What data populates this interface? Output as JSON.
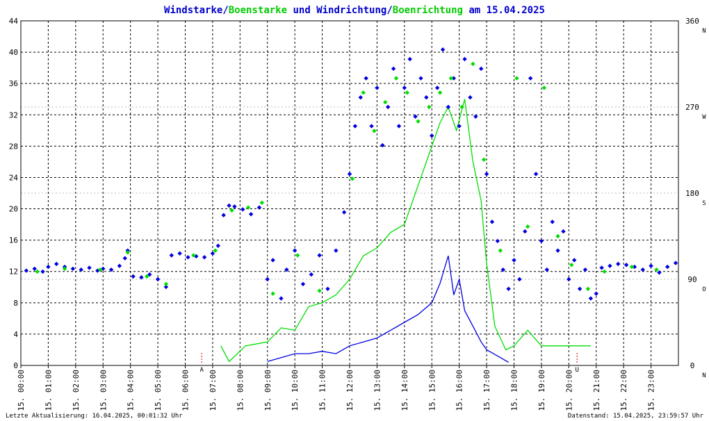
{
  "title": {
    "part1": "Windstarke",
    "sep1": "/",
    "part2": "Boenstarke",
    "part3": " und ",
    "part4": "Windrichtung",
    "sep2": "/",
    "part5": "Boenrichtung",
    "part6": " am 15.04.2025"
  },
  "footer": {
    "left": "Letzte Aktualisierung: 16.04.2025, 00:01:32 Uhr",
    "right": "Datenstand: 15.04.2025, 23:59:57 Uhr"
  },
  "markers": [
    {
      "label": "A",
      "hour": 6.6
    },
    {
      "label": "U",
      "hour": 20.3
    }
  ],
  "colors": {
    "wind": "#0000e0",
    "gust": "#00dd00",
    "title_blue": "#0000cc",
    "title_green": "#00cc00",
    "grid": "#000000",
    "marker": "#cc0000"
  },
  "chart_data": {
    "type": "line",
    "x_unit": "hour of day",
    "xlim": [
      0,
      24
    ],
    "ylim": [
      0,
      44
    ],
    "y_ticks": [
      0,
      4,
      8,
      12,
      16,
      20,
      24,
      28,
      32,
      36,
      40,
      44
    ],
    "y2lim": [
      0,
      360
    ],
    "y2_ticks": [
      {
        "value": 0,
        "label": "0",
        "dir": "N"
      },
      {
        "value": 90,
        "label": "90",
        "dir": "O"
      },
      {
        "value": 180,
        "label": "180",
        "dir": "S"
      },
      {
        "value": 270,
        "label": "270",
        "dir": "W"
      },
      {
        "value": 360,
        "label": "360",
        "dir": "N"
      }
    ],
    "x_ticks": [
      "15. 00:00",
      "15. 01:00",
      "15. 02:00",
      "15. 03:00",
      "15. 04:00",
      "15. 05:00",
      "15. 06:00",
      "15. 07:00",
      "15. 08:00",
      "15. 09:00",
      "15. 10:00",
      "15. 11:00",
      "15. 12:00",
      "15. 13:00",
      "15. 14:00",
      "15. 15:00",
      "15. 16:00",
      "15. 17:00",
      "15. 18:00",
      "15. 19:00",
      "15. 20:00",
      "15. 21:00",
      "15. 22:00",
      "15. 23:00"
    ],
    "series": [
      {
        "name": "Windstarke",
        "axis": "left",
        "style": "line",
        "points": [
          [
            9.0,
            0.5
          ],
          [
            9.5,
            1.0
          ],
          [
            10.0,
            1.5
          ],
          [
            10.5,
            1.5
          ],
          [
            11.0,
            1.8
          ],
          [
            11.5,
            1.5
          ],
          [
            12.0,
            2.5
          ],
          [
            12.5,
            3.0
          ],
          [
            13.0,
            3.5
          ],
          [
            13.5,
            4.5
          ],
          [
            14.0,
            5.5
          ],
          [
            14.5,
            6.5
          ],
          [
            15.0,
            8.0
          ],
          [
            15.3,
            10.5
          ],
          [
            15.6,
            14.0
          ],
          [
            15.8,
            9.0
          ],
          [
            16.0,
            11.0
          ],
          [
            16.2,
            7.0
          ],
          [
            16.5,
            5.0
          ],
          [
            16.8,
            3.0
          ],
          [
            17.0,
            2.0
          ],
          [
            17.5,
            1.0
          ],
          [
            17.8,
            0.4
          ]
        ]
      },
      {
        "name": "Boenstarke",
        "axis": "left",
        "style": "line",
        "points": [
          [
            7.3,
            2.5
          ],
          [
            7.6,
            0.5
          ],
          [
            8.2,
            2.5
          ],
          [
            9.0,
            3.0
          ],
          [
            9.5,
            4.8
          ],
          [
            10.0,
            4.5
          ],
          [
            10.5,
            7.5
          ],
          [
            11.0,
            8.0
          ],
          [
            11.5,
            9.0
          ],
          [
            12.0,
            11.0
          ],
          [
            12.5,
            14.0
          ],
          [
            13.0,
            15.0
          ],
          [
            13.5,
            17.0
          ],
          [
            14.0,
            18.0
          ],
          [
            14.3,
            21.0
          ],
          [
            14.6,
            24.0
          ],
          [
            15.0,
            28.0
          ],
          [
            15.3,
            31.0
          ],
          [
            15.6,
            33.0
          ],
          [
            15.9,
            30.0
          ],
          [
            16.2,
            34.0
          ],
          [
            16.5,
            26.0
          ],
          [
            16.8,
            21.0
          ],
          [
            17.0,
            13.0
          ],
          [
            17.3,
            5.0
          ],
          [
            17.7,
            2.0
          ],
          [
            18.0,
            2.5
          ],
          [
            18.5,
            4.5
          ],
          [
            19.0,
            2.5
          ],
          [
            19.5,
            2.5
          ],
          [
            20.3,
            2.5
          ],
          [
            20.8,
            2.5
          ]
        ]
      },
      {
        "name": "Windrichtung",
        "axis": "right",
        "style": "scatter",
        "points": [
          [
            0.2,
            99
          ],
          [
            0.5,
            101
          ],
          [
            0.8,
            98
          ],
          [
            1.0,
            103
          ],
          [
            1.3,
            106
          ],
          [
            1.6,
            103
          ],
          [
            1.9,
            101
          ],
          [
            2.2,
            100
          ],
          [
            2.5,
            102
          ],
          [
            2.8,
            99
          ],
          [
            3.0,
            101
          ],
          [
            3.3,
            100
          ],
          [
            3.6,
            104
          ],
          [
            3.8,
            112
          ],
          [
            3.9,
            120
          ],
          [
            4.1,
            93
          ],
          [
            4.4,
            92
          ],
          [
            4.7,
            95
          ],
          [
            5.0,
            90
          ],
          [
            5.3,
            82
          ],
          [
            5.5,
            115
          ],
          [
            5.8,
            117
          ],
          [
            6.1,
            113
          ],
          [
            6.4,
            114
          ],
          [
            6.7,
            113
          ],
          [
            7.0,
            117
          ],
          [
            7.2,
            125
          ],
          [
            7.4,
            157
          ],
          [
            7.6,
            167
          ],
          [
            7.8,
            166
          ],
          [
            8.1,
            163
          ],
          [
            8.4,
            158
          ],
          [
            8.7,
            165
          ],
          [
            9.0,
            90
          ],
          [
            9.2,
            110
          ],
          [
            9.5,
            70
          ],
          [
            9.7,
            100
          ],
          [
            10.0,
            120
          ],
          [
            10.3,
            85
          ],
          [
            10.6,
            95
          ],
          [
            10.9,
            115
          ],
          [
            11.2,
            80
          ],
          [
            11.5,
            120
          ],
          [
            11.8,
            160
          ],
          [
            12.0,
            200
          ],
          [
            12.2,
            250
          ],
          [
            12.4,
            280
          ],
          [
            12.6,
            300
          ],
          [
            12.8,
            250
          ],
          [
            13.0,
            290
          ],
          [
            13.2,
            230
          ],
          [
            13.4,
            270
          ],
          [
            13.6,
            310
          ],
          [
            13.8,
            250
          ],
          [
            14.0,
            290
          ],
          [
            14.2,
            320
          ],
          [
            14.4,
            260
          ],
          [
            14.6,
            300
          ],
          [
            14.8,
            280
          ],
          [
            15.0,
            240
          ],
          [
            15.2,
            290
          ],
          [
            15.4,
            330
          ],
          [
            15.6,
            270
          ],
          [
            15.8,
            300
          ],
          [
            16.0,
            250
          ],
          [
            16.2,
            320
          ],
          [
            16.4,
            280
          ],
          [
            16.6,
            260
          ],
          [
            16.8,
            310
          ],
          [
            17.0,
            200
          ],
          [
            17.2,
            150
          ],
          [
            17.4,
            130
          ],
          [
            17.6,
            100
          ],
          [
            17.8,
            80
          ],
          [
            18.0,
            110
          ],
          [
            18.2,
            90
          ],
          [
            18.4,
            140
          ],
          [
            18.6,
            300
          ],
          [
            18.8,
            200
          ],
          [
            19.0,
            130
          ],
          [
            19.2,
            100
          ],
          [
            19.4,
            150
          ],
          [
            19.6,
            120
          ],
          [
            19.8,
            140
          ],
          [
            20.0,
            90
          ],
          [
            20.2,
            110
          ],
          [
            20.4,
            80
          ],
          [
            20.6,
            100
          ],
          [
            20.8,
            70
          ],
          [
            21.0,
            75
          ],
          [
            21.2,
            102
          ],
          [
            21.5,
            104
          ],
          [
            21.8,
            106
          ],
          [
            22.1,
            105
          ],
          [
            22.4,
            103
          ],
          [
            22.7,
            100
          ],
          [
            23.0,
            104
          ],
          [
            23.3,
            97
          ],
          [
            23.6,
            103
          ],
          [
            23.9,
            107
          ]
        ]
      },
      {
        "name": "Boenrichtung",
        "axis": "right",
        "style": "scatter",
        "points": [
          [
            0.6,
            98
          ],
          [
            1.6,
            101
          ],
          [
            2.9,
            100
          ],
          [
            3.9,
            118
          ],
          [
            4.6,
            93
          ],
          [
            5.3,
            85
          ],
          [
            6.3,
            115
          ],
          [
            7.1,
            120
          ],
          [
            7.7,
            162
          ],
          [
            8.3,
            165
          ],
          [
            8.8,
            170
          ],
          [
            9.2,
            75
          ],
          [
            10.1,
            115
          ],
          [
            10.9,
            78
          ],
          [
            12.1,
            195
          ],
          [
            12.5,
            285
          ],
          [
            12.9,
            245
          ],
          [
            13.3,
            275
          ],
          [
            13.7,
            300
          ],
          [
            14.1,
            285
          ],
          [
            14.5,
            255
          ],
          [
            14.9,
            270
          ],
          [
            15.3,
            285
          ],
          [
            15.7,
            300
          ],
          [
            16.1,
            270
          ],
          [
            16.5,
            315
          ],
          [
            16.9,
            215
          ],
          [
            17.5,
            120
          ],
          [
            18.1,
            300
          ],
          [
            18.5,
            145
          ],
          [
            19.1,
            290
          ],
          [
            19.6,
            135
          ],
          [
            20.1,
            105
          ],
          [
            20.7,
            80
          ],
          [
            21.3,
            98
          ],
          [
            22.3,
            103
          ],
          [
            23.2,
            100
          ]
        ]
      }
    ]
  }
}
